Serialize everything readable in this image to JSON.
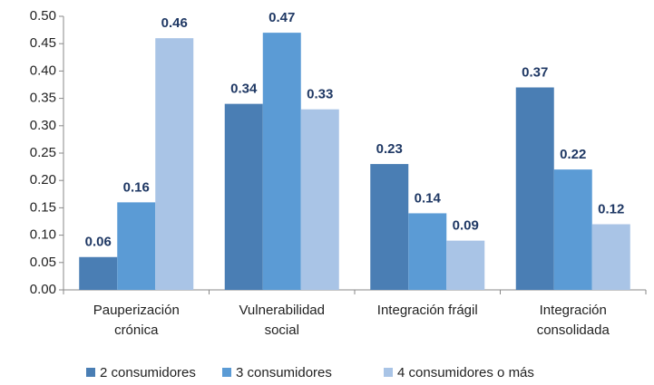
{
  "chart_data": {
    "type": "bar",
    "categories": [
      "Pauperización\ncrónica",
      "Vulnerabilidad\nsocial",
      "Integración frágil",
      "Integración\nconsolidada"
    ],
    "series": [
      {
        "name": "2 consumidores",
        "color": "#4a7eb4",
        "values": [
          0.06,
          0.34,
          0.23,
          0.37
        ]
      },
      {
        "name": "3 consumidores",
        "color": "#5b9bd5",
        "values": [
          0.16,
          0.47,
          0.14,
          0.22
        ]
      },
      {
        "name": "4 consumidores o más",
        "color": "#a9c4e6",
        "values": [
          0.46,
          0.33,
          0.09,
          0.12
        ]
      }
    ],
    "ylim": [
      0,
      0.5
    ],
    "yticks": [
      {
        "value": 0,
        "label": "0.00"
      },
      0.05,
      {
        "value": 0.1,
        "label": "0.10"
      },
      0.15,
      {
        "value": 0.2,
        "label": "0.20"
      },
      0.25,
      {
        "value": 0.3,
        "label": "0.30"
      },
      0.35,
      {
        "value": 0.4,
        "label": "0.40"
      },
      0.45,
      {
        "value": 0.5,
        "label": "0.50"
      }
    ],
    "grid": false,
    "legend": "bottom"
  }
}
